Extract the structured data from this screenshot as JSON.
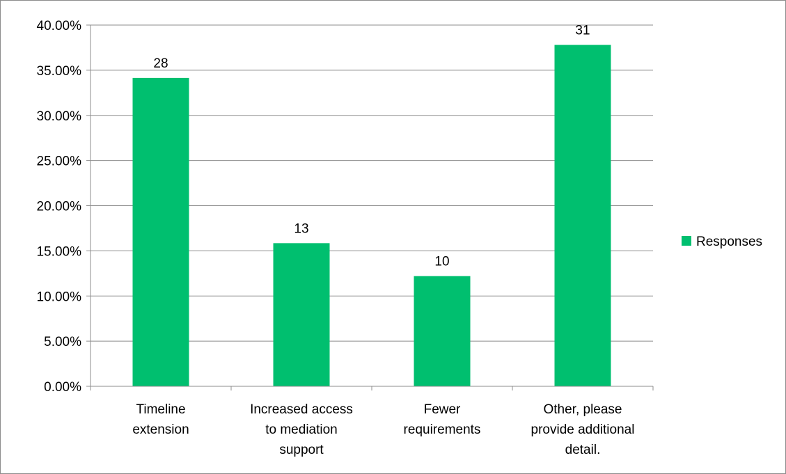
{
  "chart_data": {
    "type": "bar",
    "categories": [
      [
        "Timeline",
        "extension"
      ],
      [
        "Increased access",
        "to mediation",
        "support"
      ],
      [
        "Fewer",
        "requirements"
      ],
      [
        "Other, please",
        "provide additional",
        "detail."
      ]
    ],
    "series": [
      {
        "name": "Responses",
        "values": [
          0.3415,
          0.1585,
          0.122,
          0.378
        ],
        "data_labels": [
          "28",
          "13",
          "10",
          "31"
        ],
        "color": "#00BF6F"
      }
    ],
    "y_ticks": [
      "0.00%",
      "5.00%",
      "10.00%",
      "15.00%",
      "20.00%",
      "25.00%",
      "30.00%",
      "35.00%",
      "40.00%"
    ],
    "ylim": [
      0,
      0.4
    ],
    "grid": true,
    "legend_position": "right",
    "title": "",
    "xlabel": "",
    "ylabel": ""
  },
  "colors": {
    "bar": "#00BF6F",
    "grid": "#8c8c8c",
    "axis": "#8c8c8c",
    "frame": "#8c8c8c"
  }
}
